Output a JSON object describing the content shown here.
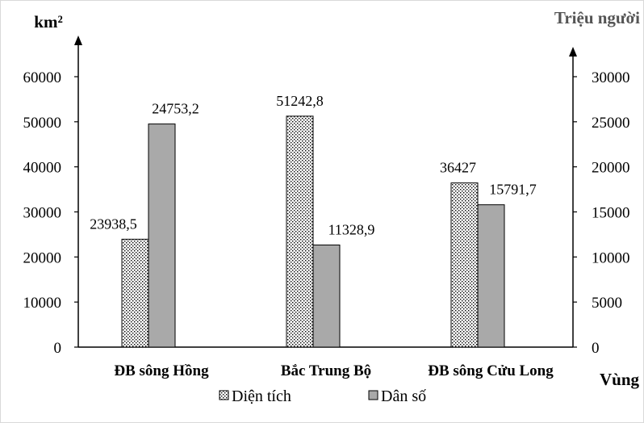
{
  "chart_data": {
    "type": "bar",
    "categories": [
      "ĐB sông Hồng",
      "Bắc Trung Bộ",
      "ĐB sông Cửu Long"
    ],
    "series": [
      {
        "name": "Diện tích",
        "axis": "left",
        "values": [
          23938.5,
          51242.8,
          36427
        ],
        "labels": [
          "23938,5",
          "51242,8",
          "36427"
        ],
        "color": "#ffffff",
        "pattern": "dotted"
      },
      {
        "name": "Dân số",
        "axis": "right",
        "values": [
          24753.2,
          11328.9,
          15791.7
        ],
        "labels": [
          "24753,2",
          "11328,9",
          "15791,7"
        ],
        "color": "#a9a9a9",
        "pattern": "solid"
      }
    ],
    "y_left": {
      "label": "km²",
      "ylim": [
        0,
        60000
      ],
      "ticks": [
        0,
        10000,
        20000,
        30000,
        40000,
        50000,
        60000
      ]
    },
    "y_right": {
      "label": "Triệu người",
      "ylim": [
        0,
        30000
      ],
      "ticks": [
        0,
        5000,
        10000,
        15000,
        20000,
        25000,
        30000
      ]
    },
    "xlabel": "Vùng",
    "legend": {
      "position": "bottom",
      "items": [
        "Diện tích",
        "Dân số"
      ]
    },
    "grid": false
  }
}
